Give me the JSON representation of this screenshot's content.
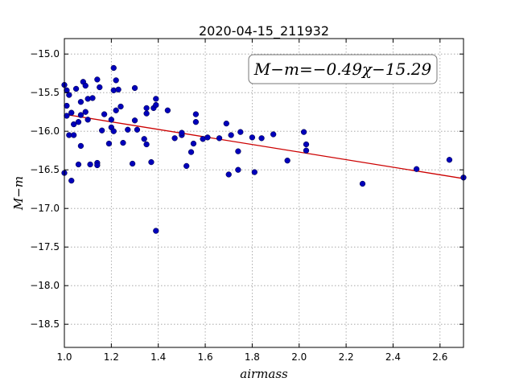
{
  "chart_data": {
    "type": "scatter",
    "title": "2020-04-15_211932",
    "xlabel": "airmass",
    "ylabel": "M−m",
    "xlim": [
      1.0,
      2.7
    ],
    "ylim": [
      -18.8,
      -14.8
    ],
    "y_inverted": true,
    "grid": true,
    "x_ticks": [
      1.0,
      1.2,
      1.4,
      1.6,
      1.8,
      2.0,
      2.2,
      2.4,
      2.6
    ],
    "x_tick_labels": [
      "1.0",
      "1.2",
      "1.4",
      "1.6",
      "1.8",
      "2.0",
      "2.2",
      "2.4",
      "2.6"
    ],
    "y_ticks": [
      -15.0,
      -15.5,
      -16.0,
      -16.5,
      -17.0,
      -17.5,
      -18.0,
      -18.5
    ],
    "y_tick_labels": [
      "−15.0",
      "−15.5",
      "−16.0",
      "−16.5",
      "−17.0",
      "−17.5",
      "−18.0",
      "−18.5"
    ],
    "annotation": "M−m=−0.49χ−15.29",
    "fit": {
      "slope": -0.49,
      "intercept": -15.29,
      "x_range": [
        1.0,
        2.7
      ],
      "color": "#cc0000"
    },
    "point_color": "#0000bb",
    "points": [
      {
        "x": 1.0,
        "y": -15.4
      },
      {
        "x": 1.0,
        "y": -16.54
      },
      {
        "x": 1.01,
        "y": -15.47
      },
      {
        "x": 1.01,
        "y": -15.67
      },
      {
        "x": 1.01,
        "y": -15.8
      },
      {
        "x": 1.02,
        "y": -15.53
      },
      {
        "x": 1.02,
        "y": -16.05
      },
      {
        "x": 1.03,
        "y": -16.64
      },
      {
        "x": 1.03,
        "y": -15.76
      },
      {
        "x": 1.04,
        "y": -15.91
      },
      {
        "x": 1.04,
        "y": -16.05
      },
      {
        "x": 1.05,
        "y": -15.45
      },
      {
        "x": 1.06,
        "y": -15.88
      },
      {
        "x": 1.06,
        "y": -16.43
      },
      {
        "x": 1.07,
        "y": -15.62
      },
      {
        "x": 1.07,
        "y": -16.19
      },
      {
        "x": 1.07,
        "y": -15.79
      },
      {
        "x": 1.08,
        "y": -15.36
      },
      {
        "x": 1.09,
        "y": -15.75
      },
      {
        "x": 1.09,
        "y": -15.41
      },
      {
        "x": 1.1,
        "y": -15.58
      },
      {
        "x": 1.1,
        "y": -15.85
      },
      {
        "x": 1.11,
        "y": -16.43
      },
      {
        "x": 1.12,
        "y": -15.57
      },
      {
        "x": 1.14,
        "y": -15.33
      },
      {
        "x": 1.14,
        "y": -16.41
      },
      {
        "x": 1.14,
        "y": -16.44
      },
      {
        "x": 1.15,
        "y": -15.43
      },
      {
        "x": 1.16,
        "y": -15.99
      },
      {
        "x": 1.17,
        "y": -15.78
      },
      {
        "x": 1.19,
        "y": -16.16
      },
      {
        "x": 1.2,
        "y": -15.85
      },
      {
        "x": 1.2,
        "y": -15.95
      },
      {
        "x": 1.21,
        "y": -15.18
      },
      {
        "x": 1.21,
        "y": -15.47
      },
      {
        "x": 1.21,
        "y": -16.0
      },
      {
        "x": 1.22,
        "y": -15.34
      },
      {
        "x": 1.22,
        "y": -15.73
      },
      {
        "x": 1.23,
        "y": -15.46
      },
      {
        "x": 1.24,
        "y": -15.68
      },
      {
        "x": 1.25,
        "y": -16.15
      },
      {
        "x": 1.27,
        "y": -15.98
      },
      {
        "x": 1.29,
        "y": -16.42
      },
      {
        "x": 1.3,
        "y": -15.44
      },
      {
        "x": 1.3,
        "y": -15.86
      },
      {
        "x": 1.31,
        "y": -15.98
      },
      {
        "x": 1.34,
        "y": -16.1
      },
      {
        "x": 1.35,
        "y": -15.77
      },
      {
        "x": 1.35,
        "y": -15.7
      },
      {
        "x": 1.35,
        "y": -16.17
      },
      {
        "x": 1.37,
        "y": -16.4
      },
      {
        "x": 1.38,
        "y": -15.7
      },
      {
        "x": 1.39,
        "y": -15.66
      },
      {
        "x": 1.39,
        "y": -15.58
      },
      {
        "x": 1.39,
        "y": -17.29
      },
      {
        "x": 1.44,
        "y": -15.73
      },
      {
        "x": 1.47,
        "y": -16.09
      },
      {
        "x": 1.5,
        "y": -16.05
      },
      {
        "x": 1.5,
        "y": -16.02
      },
      {
        "x": 1.52,
        "y": -16.45
      },
      {
        "x": 1.54,
        "y": -16.27
      },
      {
        "x": 1.55,
        "y": -16.16
      },
      {
        "x": 1.56,
        "y": -15.78
      },
      {
        "x": 1.56,
        "y": -15.88
      },
      {
        "x": 1.59,
        "y": -16.1
      },
      {
        "x": 1.61,
        "y": -16.08
      },
      {
        "x": 1.66,
        "y": -16.09
      },
      {
        "x": 1.69,
        "y": -15.9
      },
      {
        "x": 1.7,
        "y": -16.56
      },
      {
        "x": 1.71,
        "y": -16.05
      },
      {
        "x": 1.74,
        "y": -16.5
      },
      {
        "x": 1.74,
        "y": -16.26
      },
      {
        "x": 1.75,
        "y": -16.01
      },
      {
        "x": 1.8,
        "y": -16.08
      },
      {
        "x": 1.81,
        "y": -16.53
      },
      {
        "x": 1.84,
        "y": -16.09
      },
      {
        "x": 1.89,
        "y": -16.04
      },
      {
        "x": 1.95,
        "y": -16.38
      },
      {
        "x": 2.02,
        "y": -16.01
      },
      {
        "x": 2.03,
        "y": -16.17
      },
      {
        "x": 2.03,
        "y": -16.25
      },
      {
        "x": 2.27,
        "y": -16.68
      },
      {
        "x": 2.5,
        "y": -16.49
      },
      {
        "x": 2.64,
        "y": -16.37
      },
      {
        "x": 2.7,
        "y": -16.6
      }
    ]
  }
}
